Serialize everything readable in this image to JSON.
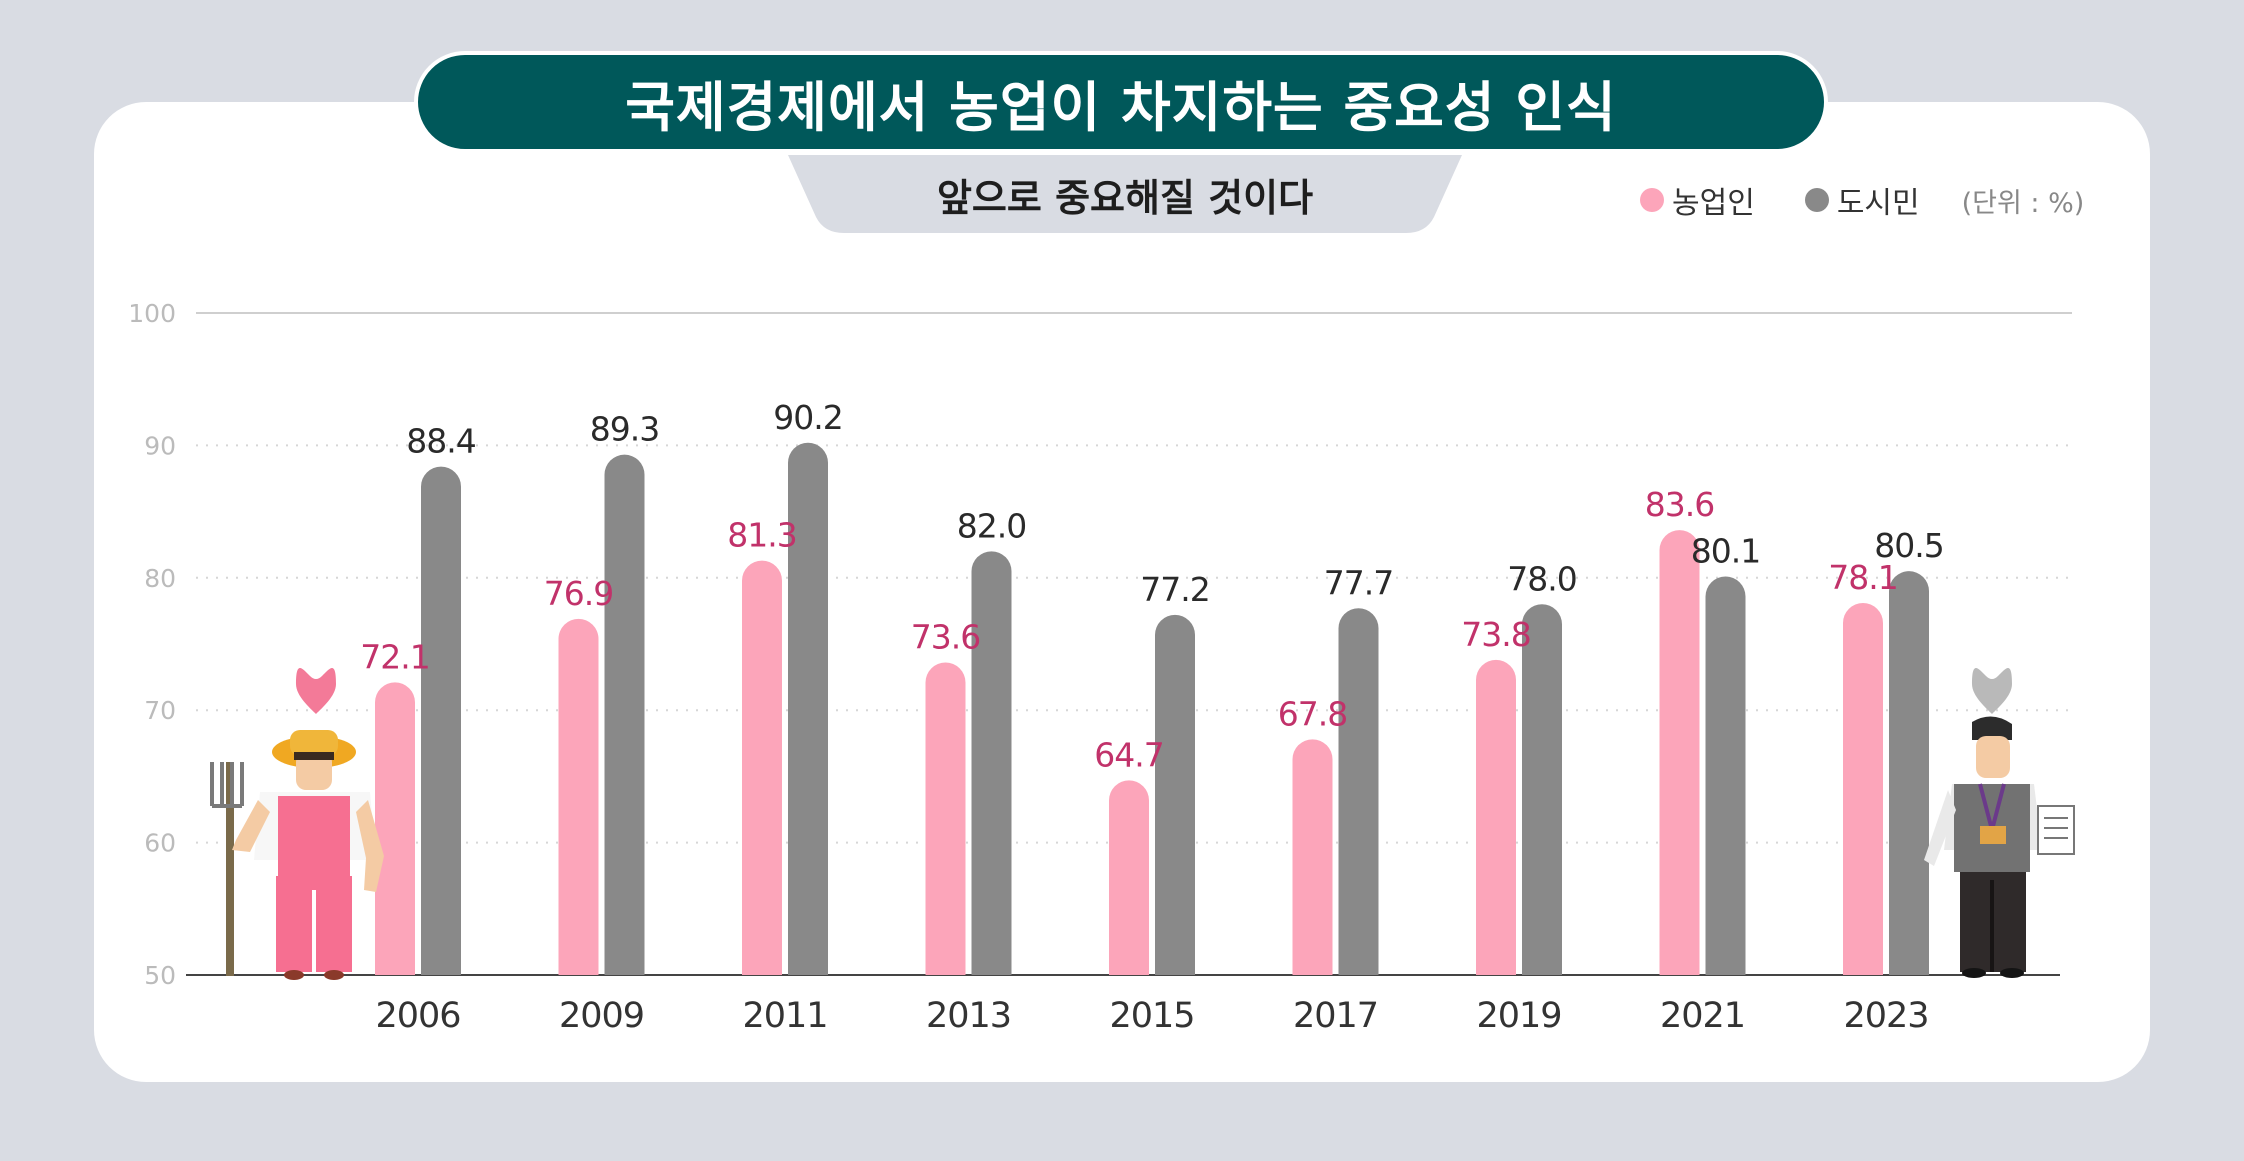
{
  "header": {
    "title": "국제경제에서 농업이 차지하는 중요성 인식",
    "subtitle": "앞으로 중요해질 것이다"
  },
  "legend": {
    "farmer_label": "농업인",
    "urban_label": "도시민",
    "unit": "(단위 : %)"
  },
  "colors": {
    "farmer": "#fca5ba",
    "urban": "#898989",
    "farmer_label": "#c1326a",
    "urban_label": "#2a2a2a",
    "title_bg": "#00585a"
  },
  "chart_data": {
    "type": "bar",
    "title": "국제경제에서 농업이 차지하는 중요성 인식",
    "subtitle": "앞으로 중요해질 것이다",
    "unit": "(단위 : %)",
    "categories": [
      "2006",
      "2009",
      "2011",
      "2013",
      "2015",
      "2017",
      "2019",
      "2021",
      "2023"
    ],
    "series": [
      {
        "name": "농업인",
        "values": [
          72.1,
          76.9,
          81.3,
          73.6,
          64.7,
          67.8,
          73.8,
          83.6,
          78.1
        ]
      },
      {
        "name": "도시민",
        "values": [
          88.4,
          89.3,
          90.2,
          82.0,
          77.2,
          77.7,
          78.0,
          80.1,
          80.5
        ]
      }
    ],
    "ylim": [
      50,
      100
    ],
    "yticks": [
      50,
      60,
      70,
      80,
      90,
      100
    ],
    "grid": true,
    "legend_position": "top-right"
  }
}
